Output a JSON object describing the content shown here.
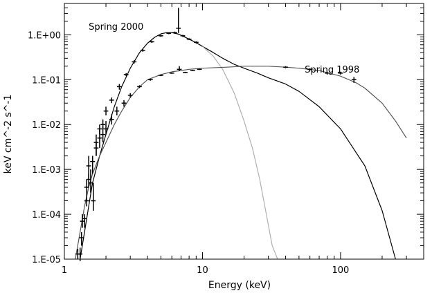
{
  "chart_data": {
    "type": "line",
    "xlabel": "Energy (keV)",
    "ylabel": "keV cm^-2 s^-1",
    "xscale": "log",
    "yscale": "log",
    "xlim": [
      1,
      400
    ],
    "ylim": [
      1e-05,
      5
    ],
    "grid": false,
    "x_ticks": [
      {
        "value": 1,
        "label": "1"
      },
      {
        "value": 10,
        "label": "10"
      },
      {
        "value": 100,
        "label": "100"
      }
    ],
    "y_ticks": [
      {
        "value": 1e-05,
        "label": "1.E-05"
      },
      {
        "value": 0.0001,
        "label": "1.E-04"
      },
      {
        "value": 0.001,
        "label": "1.E-03"
      },
      {
        "value": 0.01,
        "label": "1.E-02"
      },
      {
        "value": 0.1,
        "label": "1.E-01"
      },
      {
        "value": 1,
        "label": "1.E+00"
      }
    ],
    "annotations": [
      {
        "text": "Spring 2000",
        "x": 1.5,
        "y": 1.3
      },
      {
        "text": "Spring 1998",
        "x": 55,
        "y": 0.145
      }
    ],
    "series": [
      {
        "key": "spring2000-total",
        "color": "#000000",
        "x": [
          1.3,
          1.4,
          1.5,
          1.6,
          1.8,
          2.0,
          2.3,
          2.6,
          3.0,
          3.5,
          4.0,
          4.5,
          5.0,
          5.5,
          6.0,
          6.3,
          6.6,
          6.9,
          7.3,
          8.0,
          9.0,
          10.0,
          12.0,
          14.0,
          17.0,
          20.0,
          25.0,
          30.0,
          40.0,
          50.0,
          70.0,
          100.0,
          150.0,
          200.0,
          250.0
        ],
        "y": [
          1e-05,
          4e-05,
          0.00015,
          0.0005,
          0.002,
          0.006,
          0.025,
          0.07,
          0.18,
          0.4,
          0.65,
          0.88,
          1.05,
          1.12,
          1.12,
          1.08,
          1.05,
          1.0,
          0.92,
          0.8,
          0.67,
          0.55,
          0.4,
          0.3,
          0.22,
          0.18,
          0.14,
          0.11,
          0.08,
          0.055,
          0.025,
          0.008,
          0.0012,
          0.00012,
          1e-05
        ]
      },
      {
        "key": "spring2000-soft",
        "color": "#b0b0b0",
        "x": [
          10.0,
          12.0,
          14.0,
          17.0,
          20.0,
          23.0,
          26.0,
          29.0,
          32.0,
          35.0
        ],
        "y": [
          0.55,
          0.33,
          0.17,
          0.05,
          0.012,
          0.003,
          0.0006,
          0.0001,
          2e-05,
          1e-05
        ]
      },
      {
        "key": "spring1998-total",
        "color": "#555555",
        "x": [
          1.2,
          1.3,
          1.4,
          1.5,
          1.6,
          1.8,
          2.0,
          2.3,
          2.6,
          3.0,
          3.5,
          4.0,
          5.0,
          6.0,
          7.0,
          8.0,
          10.0,
          15.0,
          20.0,
          30.0,
          40.0,
          50.0,
          70.0,
          100.0,
          130.0,
          150.0,
          200.0,
          250.0,
          300.0
        ],
        "y": [
          1e-05,
          4e-05,
          0.00015,
          0.0004,
          0.0008,
          0.002,
          0.004,
          0.01,
          0.02,
          0.04,
          0.07,
          0.1,
          0.13,
          0.15,
          0.16,
          0.17,
          0.18,
          0.19,
          0.2,
          0.2,
          0.19,
          0.18,
          0.16,
          0.12,
          0.085,
          0.065,
          0.03,
          0.012,
          0.005
        ]
      }
    ],
    "error_bars": [
      {
        "key": "spring2000-data",
        "points": [
          {
            "x": 1.3,
            "y": 1.3e-05,
            "ylo": 9e-06,
            "yhi": 1.8e-05
          },
          {
            "x": 1.33,
            "y": 3e-05,
            "ylo": 2e-05,
            "yhi": 4e-05
          },
          {
            "x": 1.4,
            "y": 8e-05,
            "ylo": 5e-05,
            "yhi": 0.0001
          },
          {
            "x": 1.45,
            "y": 0.0002,
            "ylo": 0.00015,
            "yhi": 0.0003
          },
          {
            "x": 1.5,
            "y": 0.0006,
            "ylo": 0.0004,
            "yhi": 0.0008
          },
          {
            "x": 1.6,
            "y": 0.0015,
            "ylo": 0.001,
            "yhi": 0.002
          },
          {
            "x": 1.7,
            "y": 0.003,
            "ylo": 0.002,
            "yhi": 0.004
          },
          {
            "x": 1.8,
            "y": 0.008,
            "ylo": 0.006,
            "yhi": 0.01
          },
          {
            "x": 1.9,
            "y": 0.01,
            "ylo": 0.008,
            "yhi": 0.013
          },
          {
            "x": 2.0,
            "y": 0.02,
            "ylo": 0.016,
            "yhi": 0.025
          },
          {
            "x": 2.2,
            "y": 0.035,
            "ylo": 0.03,
            "yhi": 0.04
          },
          {
            "x": 2.5,
            "y": 0.07,
            "ylo": 0.06,
            "yhi": 0.08
          },
          {
            "x": 2.8,
            "y": 0.13,
            "ylo": 0.12,
            "yhi": 0.14
          },
          {
            "x": 3.2,
            "y": 0.25,
            "ylo": 0.23,
            "yhi": 0.27
          },
          {
            "x": 3.7,
            "y": 0.45,
            "ylo": 0.42,
            "yhi": 0.48
          },
          {
            "x": 4.3,
            "y": 0.7,
            "ylo": 0.66,
            "yhi": 0.74
          },
          {
            "x": 5.0,
            "y": 0.95,
            "ylo": 0.9,
            "yhi": 1.0
          },
          {
            "x": 5.7,
            "y": 1.08,
            "ylo": 1.03,
            "yhi": 1.13
          },
          {
            "x": 6.3,
            "y": 1.12,
            "ylo": 1.06,
            "yhi": 1.18
          },
          {
            "x": 6.7,
            "y": 1.4,
            "ylo": 1.1,
            "yhi": 4.0
          },
          {
            "x": 7.2,
            "y": 0.95,
            "ylo": 0.9,
            "yhi": 1.0
          },
          {
            "x": 8.0,
            "y": 0.8,
            "ylo": 0.76,
            "yhi": 0.84
          },
          {
            "x": 9.0,
            "y": 0.68,
            "ylo": 0.64,
            "yhi": 0.72
          }
        ]
      },
      {
        "key": "spring1998-data",
        "points": [
          {
            "x": 1.25,
            "y": 1.3e-05,
            "ylo": 1e-05,
            "yhi": 1.7e-05
          },
          {
            "x": 1.35,
            "y": 7e-05,
            "ylo": 5e-05,
            "yhi": 0.0001
          },
          {
            "x": 1.45,
            "y": 0.0004,
            "ylo": 0.0003,
            "yhi": 0.0006
          },
          {
            "x": 1.5,
            "y": 0.0012,
            "ylo": 0.0006,
            "yhi": 0.002
          },
          {
            "x": 1.55,
            "y": 0.0005,
            "ylo": 0.0003,
            "yhi": 0.001
          },
          {
            "x": 1.6,
            "y": 0.0015,
            "ylo": 0.0008,
            "yhi": 0.002
          },
          {
            "x": 1.62,
            "y": 0.0002,
            "ylo": 0.00012,
            "yhi": 0.0005
          },
          {
            "x": 1.7,
            "y": 0.004,
            "ylo": 0.002,
            "yhi": 0.006
          },
          {
            "x": 1.8,
            "y": 0.005,
            "ylo": 0.003,
            "yhi": 0.008
          },
          {
            "x": 1.9,
            "y": 0.006,
            "ylo": 0.004,
            "yhi": 0.009
          },
          {
            "x": 2.0,
            "y": 0.008,
            "ylo": 0.006,
            "yhi": 0.012
          },
          {
            "x": 2.2,
            "y": 0.013,
            "ylo": 0.01,
            "yhi": 0.017
          },
          {
            "x": 2.4,
            "y": 0.02,
            "ylo": 0.016,
            "yhi": 0.025
          },
          {
            "x": 2.7,
            "y": 0.03,
            "ylo": 0.025,
            "yhi": 0.035
          },
          {
            "x": 3.0,
            "y": 0.045,
            "ylo": 0.04,
            "yhi": 0.05
          },
          {
            "x": 3.5,
            "y": 0.07,
            "ylo": 0.065,
            "yhi": 0.075
          },
          {
            "x": 4.2,
            "y": 0.1,
            "ylo": 0.095,
            "yhi": 0.105
          },
          {
            "x": 5.0,
            "y": 0.125,
            "ylo": 0.12,
            "yhi": 0.13
          },
          {
            "x": 6.0,
            "y": 0.14,
            "ylo": 0.135,
            "yhi": 0.145
          },
          {
            "x": 6.8,
            "y": 0.17,
            "ylo": 0.155,
            "yhi": 0.2
          },
          {
            "x": 7.5,
            "y": 0.145,
            "ylo": 0.14,
            "yhi": 0.15
          },
          {
            "x": 8.5,
            "y": 0.16,
            "ylo": 0.155,
            "yhi": 0.165
          },
          {
            "x": 9.5,
            "y": 0.17,
            "ylo": 0.165,
            "yhi": 0.175
          },
          {
            "x": 40.0,
            "y": 0.19,
            "ylo": 0.18,
            "yhi": 0.2
          },
          {
            "x": 60.0,
            "y": 0.17,
            "ylo": 0.16,
            "yhi": 0.18
          },
          {
            "x": 80.0,
            "y": 0.14,
            "ylo": 0.13,
            "yhi": 0.15
          },
          {
            "x": 100.0,
            "y": 0.14,
            "ylo": 0.13,
            "yhi": 0.15
          },
          {
            "x": 125.0,
            "y": 0.1,
            "ylo": 0.085,
            "yhi": 0.115
          }
        ]
      }
    ]
  }
}
